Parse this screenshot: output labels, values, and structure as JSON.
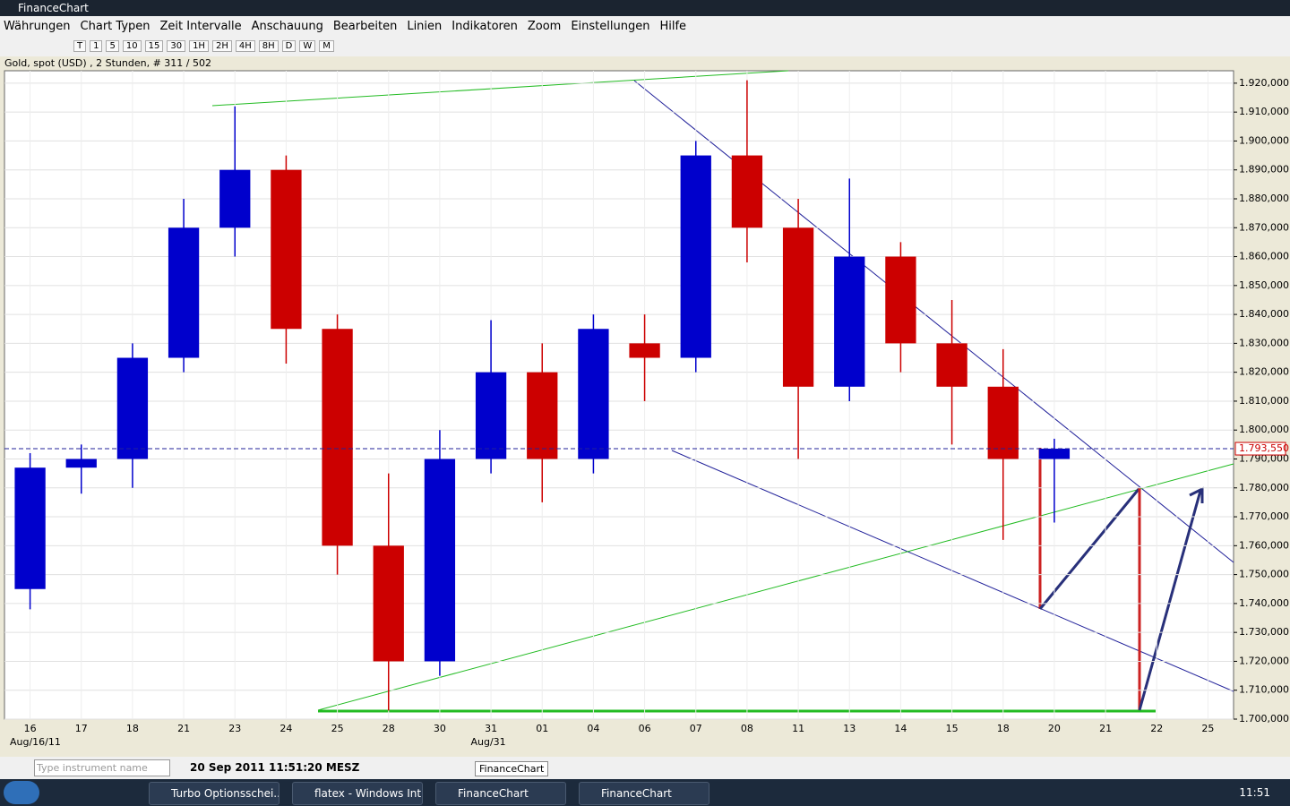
{
  "window": {
    "title": "FinanceChart"
  },
  "menu": [
    "Währungen",
    "Chart Typen",
    "Zeit Intervalle",
    "Anschauung",
    "Bearbeiten",
    "Linien",
    "Indikatoren",
    "Zoom",
    "Einstellungen",
    "Hilfe"
  ],
  "toolbar": [
    "T",
    "1",
    "5",
    "10",
    "15",
    "30",
    "1H",
    "2H",
    "4H",
    "8H",
    "D",
    "W",
    "M"
  ],
  "info": "Gold, spot (USD) , 2 Stunden, # 311 / 502",
  "chart_data": {
    "type": "candlestick",
    "categories": [
      "16",
      "17",
      "18",
      "21",
      "23",
      "24",
      "25",
      "28",
      "30",
      "31",
      "01",
      "04",
      "06",
      "07",
      "08",
      "11",
      "13",
      "14",
      "15",
      "18",
      "20",
      "21",
      "22",
      "25"
    ],
    "open": [
      1745,
      1787,
      1790,
      1825,
      1870,
      1890,
      1835,
      1760,
      1720,
      1790,
      1820,
      1790,
      1830,
      1825,
      1895,
      1870,
      1815,
      1860,
      1830,
      1815,
      1790,
      null,
      null,
      null
    ],
    "high": [
      1792,
      1795,
      1830,
      1880,
      1912,
      1895,
      1840,
      1785,
      1800,
      1838,
      1830,
      1840,
      1840,
      1900,
      1921,
      1880,
      1887,
      1865,
      1845,
      1828,
      1797,
      null,
      null,
      null
    ],
    "low": [
      1738,
      1778,
      1780,
      1820,
      1860,
      1823,
      1750,
      1703,
      1715,
      1785,
      1775,
      1785,
      1810,
      1820,
      1858,
      1790,
      1810,
      1820,
      1795,
      1762,
      1768,
      null,
      null,
      null
    ],
    "close": [
      1787,
      1790,
      1825,
      1870,
      1890,
      1835,
      1760,
      1720,
      1790,
      1820,
      1790,
      1835,
      1825,
      1895,
      1870,
      1815,
      1860,
      1830,
      1815,
      1790,
      1793.55,
      null,
      null,
      null
    ],
    "up_color": "#0000cc",
    "down_color": "#cc0000",
    "ylim": [
      1700,
      1924.3
    ],
    "yticks": [
      {
        "value": 1700,
        "label": "1.700,000"
      },
      {
        "value": 1710,
        "label": "1.710,000"
      },
      {
        "value": 1720,
        "label": "1.720,000"
      },
      {
        "value": 1730,
        "label": "1.730,000"
      },
      {
        "value": 1740,
        "label": "1.740,000"
      },
      {
        "value": 1750,
        "label": "1.750,000"
      },
      {
        "value": 1760,
        "label": "1.760,000"
      },
      {
        "value": 1770,
        "label": "1.770,000"
      },
      {
        "value": 1780,
        "label": "1.780,000"
      },
      {
        "value": 1790,
        "label": "1.790,000"
      },
      {
        "value": 1800,
        "label": "1.800,000"
      },
      {
        "value": 1810,
        "label": "1.810,000"
      },
      {
        "value": 1820,
        "label": "1.820,000"
      },
      {
        "value": 1830,
        "label": "1.830,000"
      },
      {
        "value": 1840,
        "label": "1.840,000"
      },
      {
        "value": 1850,
        "label": "1.850,000"
      },
      {
        "value": 1860,
        "label": "1.860,000"
      },
      {
        "value": 1870,
        "label": "1.870,000"
      },
      {
        "value": 1880,
        "label": "1.880,000"
      },
      {
        "value": 1890,
        "label": "1.890,000"
      },
      {
        "value": 1900,
        "label": "1.900,000"
      },
      {
        "value": 1910,
        "label": "1.910,000"
      },
      {
        "value": 1920,
        "label": "1.920,000"
      }
    ],
    "grid": true,
    "last_price": {
      "value": 1793.55,
      "label": "1.793,550"
    },
    "period_labels": [
      "Aug/16/11",
      "Aug/31"
    ]
  },
  "status": {
    "search_placeholder": "Type instrument name",
    "datetime": "20 Sep 2011 11:51:20 MESZ",
    "tooltip": "FinanceChart"
  },
  "taskbar": {
    "items": [
      "Turbo Optionsschei...",
      "flatex - Windows Int...",
      "FinanceChart",
      "FinanceChart"
    ],
    "clock": "11:51"
  }
}
